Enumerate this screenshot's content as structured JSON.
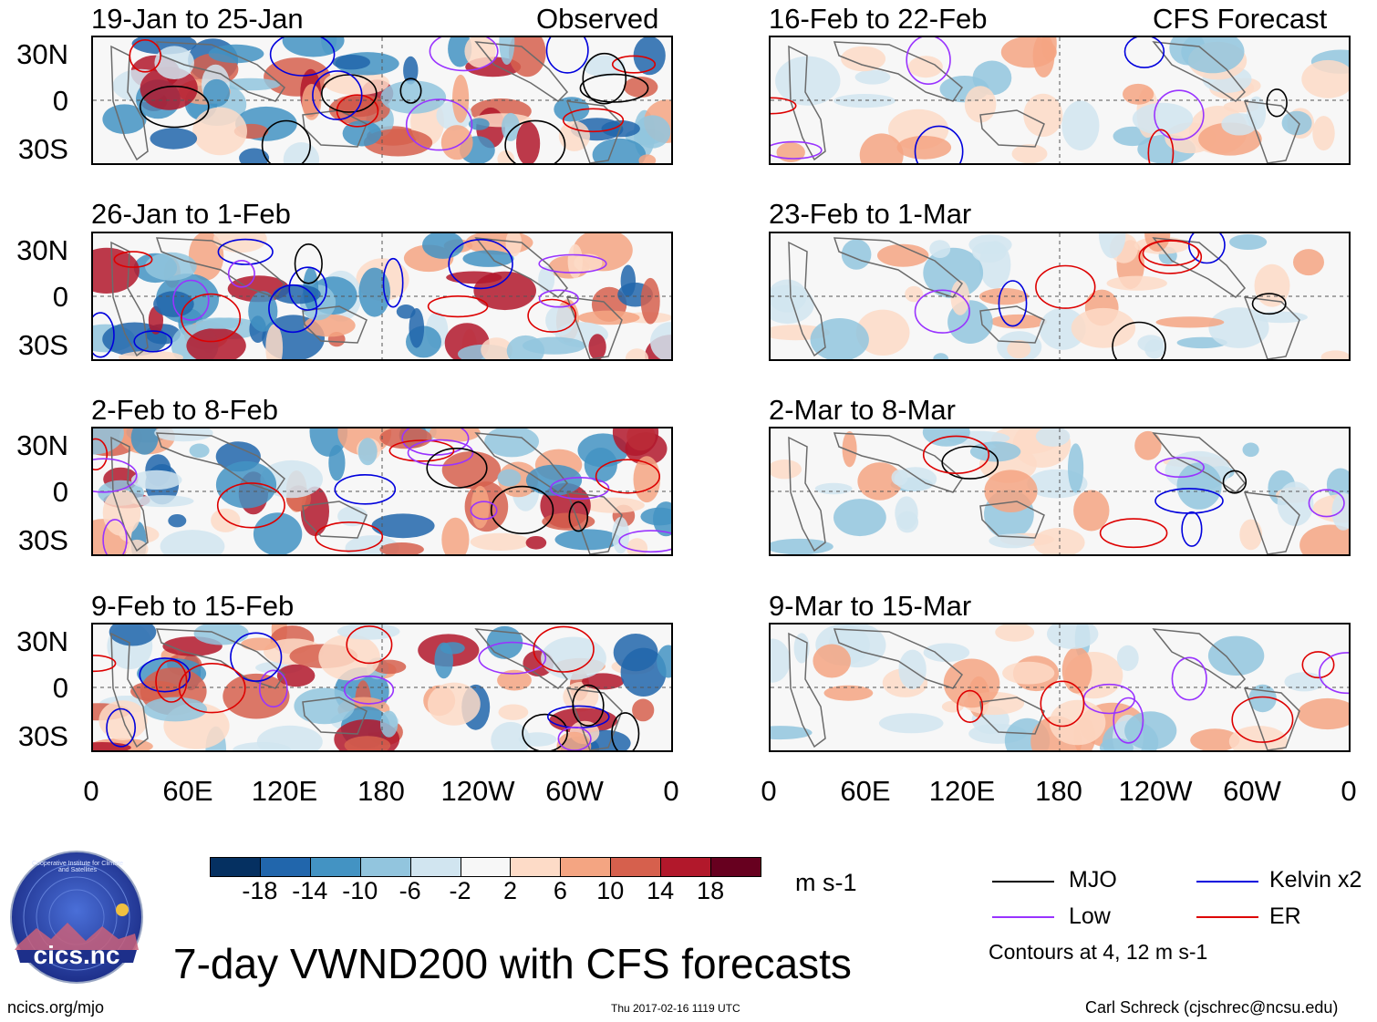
{
  "chart_data": {
    "type": "heatmap",
    "title": "7-day VWND200 with CFS forecasts",
    "variable": "VWND200",
    "units": "m s-1",
    "x_tick_labels": [
      "0",
      "60E",
      "120E",
      "180",
      "120W",
      "60W",
      "0"
    ],
    "y_tick_labels": [
      "30N",
      "0",
      "30S"
    ],
    "observed_label": "Observed",
    "forecast_label": "CFS Forecast",
    "panels": [
      {
        "title": "19-Jan to 25-Jan",
        "source": "Observed"
      },
      {
        "title": "26-Jan to 1-Feb",
        "source": "Observed"
      },
      {
        "title": "2-Feb to 8-Feb",
        "source": "Observed"
      },
      {
        "title": "9-Feb to 15-Feb",
        "source": "Observed"
      },
      {
        "title": "16-Feb to 22-Feb",
        "source": "CFS Forecast"
      },
      {
        "title": "23-Feb to 1-Mar",
        "source": "CFS Forecast"
      },
      {
        "title": "2-Mar to 8-Mar",
        "source": "CFS Forecast"
      },
      {
        "title": "9-Mar to 15-Mar",
        "source": "CFS Forecast"
      }
    ],
    "colorbar": {
      "colors": [
        "#053061",
        "#2166ac",
        "#4393c3",
        "#92c5de",
        "#d1e5f0",
        "#f7f7f7",
        "#fddbc7",
        "#f4a582",
        "#d6604d",
        "#b2182b",
        "#67001f"
      ],
      "labels": [
        "-18",
        "-14",
        "-10",
        "-6",
        "-2",
        "2",
        "6",
        "10",
        "14",
        "18"
      ],
      "units": "m s-1"
    },
    "legend": [
      {
        "name": "MJO",
        "color": "#000000"
      },
      {
        "name": "Kelvin x2",
        "color": "#0000dd"
      },
      {
        "name": "Low",
        "color": "#9933ff"
      },
      {
        "name": "ER",
        "color": "#dd0000"
      }
    ],
    "contour_note": "Contours at 4, 12 m s-1"
  },
  "footer": {
    "logo_text": "cics.nc",
    "logo_ring_text": "Cooperative Institute for Climate and Satellites",
    "website": "ncics.org/mjo",
    "timestamp": "Thu 2017-02-16 1119 UTC",
    "author": "Carl Schreck (cjschrec@ncsu.edu)"
  }
}
